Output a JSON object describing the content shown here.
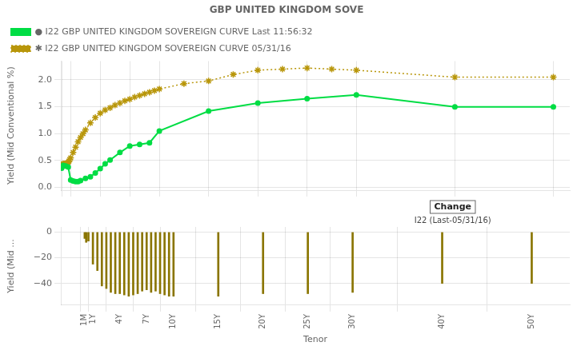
{
  "chart_data": [
    {
      "type": "line",
      "title": "GBP UNITED KINGDOM SOVE",
      "ylabel": "Yield (Mid Conventional %)",
      "xlim": [
        0,
        620
      ],
      "xticks": [
        {
          "value": 1,
          "label": "1M"
        },
        {
          "value": 12,
          "label": "1Y"
        },
        {
          "value": 48,
          "label": "4Y"
        },
        {
          "value": 84,
          "label": "7Y"
        },
        {
          "value": 120,
          "label": "10Y"
        },
        {
          "value": 180,
          "label": "15Y"
        },
        {
          "value": 240,
          "label": "20Y"
        },
        {
          "value": 300,
          "label": "25Y"
        },
        {
          "value": 360,
          "label": "30Y"
        },
        {
          "value": 480,
          "label": "40Y"
        },
        {
          "value": 600,
          "label": "50Y"
        }
      ],
      "ylim": [
        -0.05,
        2.35
      ],
      "yticks": [
        {
          "value": 0,
          "label": "0.0"
        },
        0.5,
        {
          "value": 1,
          "label": "1.0"
        },
        1.5,
        {
          "value": 2,
          "label": "2.0"
        }
      ],
      "tick_labels": "y",
      "grid": true,
      "legend": "upper left",
      "series": [
        {
          "name": "● I22 GBP UNITED KINGDOM SOVEREIGN CURVE Last 11:56:32",
          "color": "#00dd44",
          "marker": "circle",
          "line_style": "solid",
          "x": [
            1,
            2,
            3,
            6,
            9,
            12,
            15,
            18,
            21,
            24,
            30,
            36,
            42,
            48,
            54,
            60,
            72,
            84,
            96,
            108,
            120,
            180,
            240,
            300,
            360,
            480,
            600
          ],
          "values": [
            0.36,
            0.39,
            0.41,
            0.4,
            0.38,
            0.14,
            0.12,
            0.11,
            0.11,
            0.13,
            0.17,
            0.2,
            0.27,
            0.35,
            0.44,
            0.51,
            0.65,
            0.77,
            0.8,
            0.83,
            1.05,
            1.42,
            1.57,
            1.65,
            1.72,
            1.5,
            1.5
          ]
        },
        {
          "name": "✱ I22 GBP UNITED KINGDOM SOVEREIGN CURVE 05/31/16",
          "color": "#b8960a",
          "marker": "star",
          "line_style": "dotted",
          "x": [
            1,
            2,
            3,
            4,
            5,
            6,
            7,
            8,
            9,
            10,
            11,
            12,
            15,
            18,
            21,
            24,
            27,
            30,
            36,
            42,
            48,
            54,
            60,
            66,
            72,
            78,
            84,
            90,
            96,
            102,
            108,
            114,
            120,
            150,
            180,
            210,
            240,
            270,
            300,
            330,
            360,
            480,
            600
          ],
          "values": [
            0.42,
            0.43,
            0.44,
            0.44,
            0.44,
            0.44,
            0.44,
            0.45,
            0.47,
            0.49,
            0.52,
            0.55,
            0.65,
            0.75,
            0.85,
            0.93,
            1.0,
            1.07,
            1.2,
            1.3,
            1.38,
            1.44,
            1.48,
            1.53,
            1.57,
            1.61,
            1.64,
            1.68,
            1.71,
            1.74,
            1.77,
            1.8,
            1.83,
            1.93,
            1.98,
            2.1,
            2.18,
            2.2,
            2.22,
            2.2,
            2.18,
            2.05,
            2.05
          ]
        }
      ]
    },
    {
      "type": "bar",
      "ylabel": "Yield (Mid ...",
      "xlabel": "Tenor",
      "x": [
        1,
        3,
        6,
        12,
        18,
        24,
        30,
        36,
        42,
        48,
        54,
        60,
        66,
        72,
        78,
        84,
        90,
        96,
        102,
        108,
        114,
        120,
        180,
        240,
        300,
        360,
        480,
        600
      ],
      "values": [
        -5,
        -8,
        -7,
        -25,
        -30,
        -42,
        -44,
        -47,
        -48,
        -48,
        -49,
        -50,
        -49,
        -48,
        -46,
        -45,
        -47,
        -46,
        -48,
        -49,
        -50,
        -50,
        -50,
        -48,
        -48,
        -47,
        -40,
        -40
      ],
      "color": "#8a7500",
      "xlim": [
        0,
        620
      ],
      "xticks": [
        {
          "value": 1,
          "label": "1M"
        },
        {
          "value": 12,
          "label": "1Y"
        },
        {
          "value": 48,
          "label": "4Y"
        },
        {
          "value": 84,
          "label": "7Y"
        },
        {
          "value": 120,
          "label": "10Y"
        },
        {
          "value": 180,
          "label": "15Y"
        },
        {
          "value": 240,
          "label": "20Y"
        },
        {
          "value": 300,
          "label": "25Y"
        },
        {
          "value": 360,
          "label": "30Y"
        },
        {
          "value": 480,
          "label": "40Y"
        },
        {
          "value": 600,
          "label": "50Y"
        }
      ],
      "ylim": [
        -57,
        4
      ],
      "yticks": [
        {
          "value": -40,
          "label": "−40"
        },
        {
          "value": -20,
          "label": "−20"
        },
        0
      ],
      "grid": true,
      "annotations": [
        "Change",
        "I22 (Last-05/31/16)"
      ]
    }
  ]
}
